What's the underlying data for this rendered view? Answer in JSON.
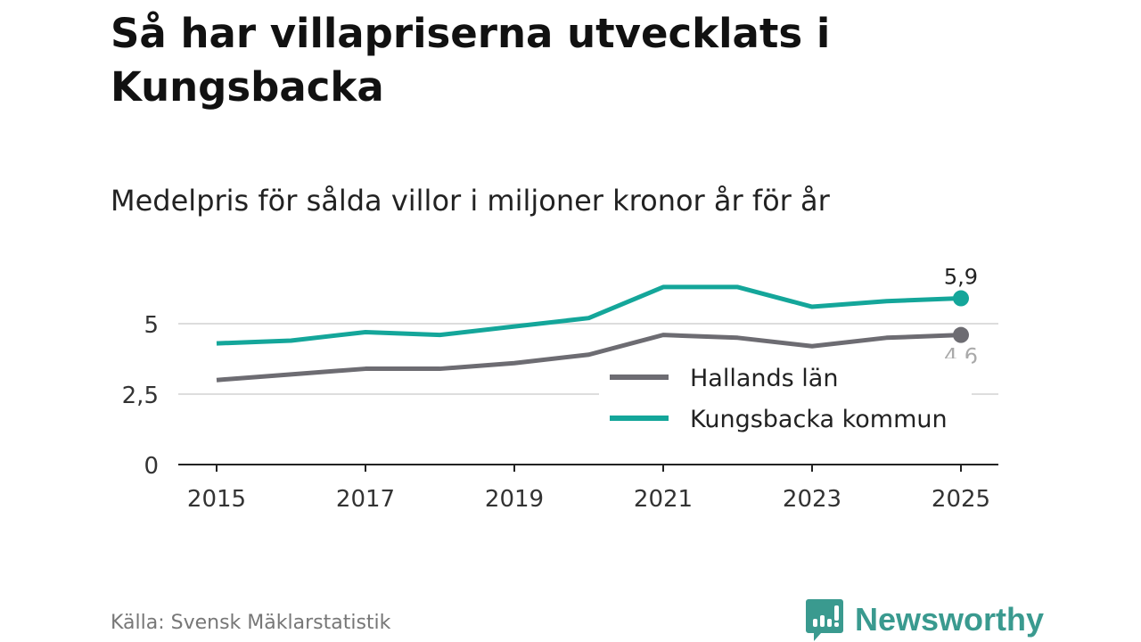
{
  "title": "Så har villapriserna utvecklats i Kungsbacka",
  "subtitle": "Medelpris för sålda villor i miljoner kronor år för år",
  "source": "Källa: Svensk Mäklarstatistik",
  "logo": "Newsworthy",
  "chart_data": {
    "type": "line",
    "title": "Så har villapriserna utvecklats i Kungsbacka",
    "subtitle": "Medelpris för sålda villor i miljoner kronor år för år",
    "x": [
      2015,
      2016,
      2017,
      2018,
      2019,
      2020,
      2021,
      2022,
      2023,
      2024,
      2025
    ],
    "x_ticks": [
      "2015",
      "2017",
      "2019",
      "2021",
      "2023",
      "2025"
    ],
    "y_ticks": [
      "0",
      "2,5",
      "5"
    ],
    "ylim": [
      0,
      6.4
    ],
    "grid": true,
    "legend_position": "bottom-right",
    "series": [
      {
        "name": "Hallands län",
        "color": "#6d6c72",
        "end_label": "4,6",
        "values": [
          3.0,
          3.2,
          3.4,
          3.4,
          3.6,
          3.9,
          4.6,
          4.5,
          4.2,
          4.5,
          4.6
        ]
      },
      {
        "name": "Kungsbacka kommun",
        "color": "#14a69a",
        "end_label": "5,9",
        "values": [
          4.3,
          4.4,
          4.7,
          4.6,
          4.9,
          5.2,
          6.3,
          6.3,
          5.6,
          5.8,
          5.9
        ]
      }
    ]
  }
}
